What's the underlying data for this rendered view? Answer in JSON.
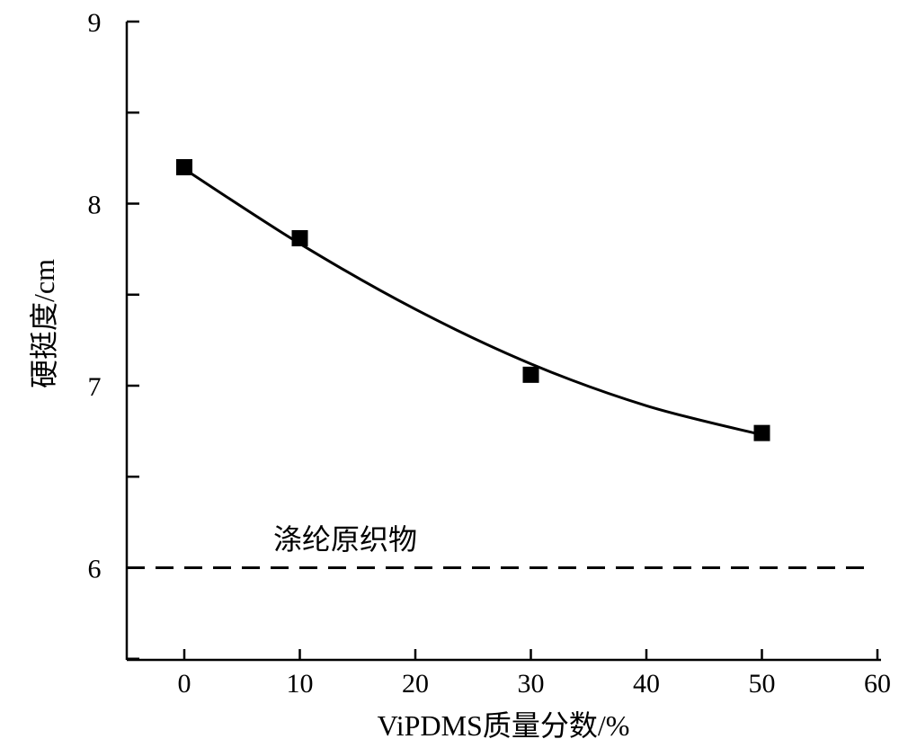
{
  "chart_data": {
    "type": "scatter",
    "xlabel": "ViPDMS质量分数/%",
    "ylabel": "硬挺度/cm",
    "xlim": [
      -5,
      60
    ],
    "ylim": [
      5.5,
      9
    ],
    "x_ticks": [
      0,
      10,
      20,
      30,
      40,
      50,
      60
    ],
    "y_ticks": [
      6,
      7,
      8,
      9
    ],
    "y_minor_ticks": [
      5.5,
      6.5,
      7.5,
      8.5
    ],
    "series": [
      {
        "marker": "square",
        "color": "#000000",
        "x": [
          0,
          10,
          30,
          50
        ],
        "y": [
          8.2,
          7.81,
          7.06,
          6.74
        ]
      }
    ],
    "fit_curve": {
      "style": "solid",
      "x": [
        0,
        10,
        20,
        30,
        40,
        50
      ],
      "y": [
        8.19,
        7.78,
        7.42,
        7.12,
        6.89,
        6.73
      ]
    },
    "reference_line": {
      "style": "dashed",
      "y": 6,
      "label": "涤纶原织物"
    },
    "grid": false,
    "legend": "none"
  }
}
